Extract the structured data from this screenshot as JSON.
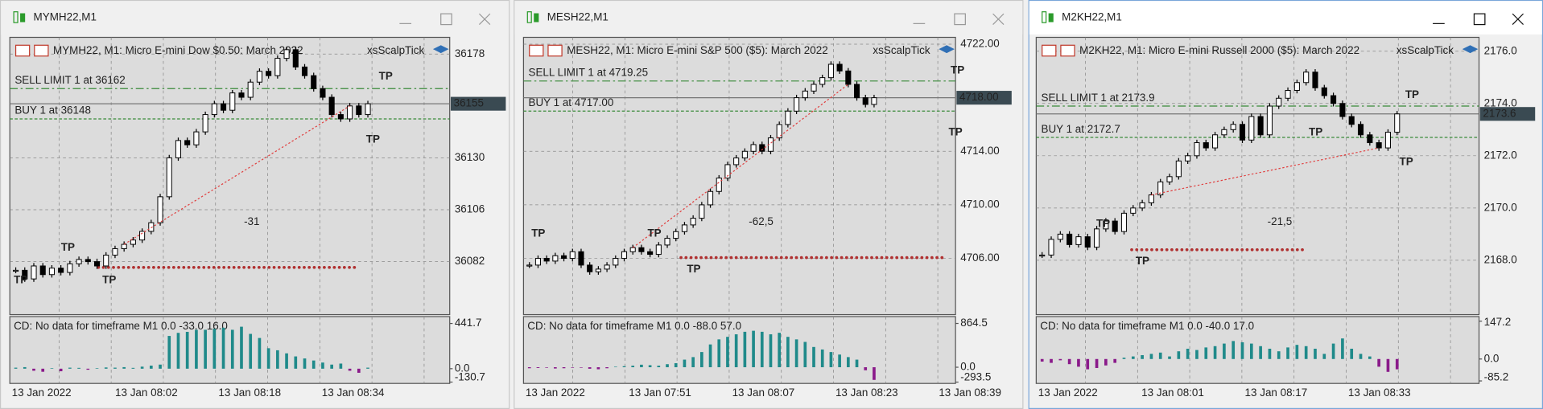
{
  "windows": [
    {
      "title": "MYMH22,M1",
      "header": "MYMH22, M1:  Micro E-mini Dow $0.50: March 2022",
      "expert": "xsScalpTick",
      "ylim": [
        36057.5,
        36185.7
      ],
      "yticks": [
        36082,
        36106,
        36130,
        36178
      ],
      "current_price": 36155,
      "sell_limit": {
        "label": "SELL LIMIT 1 at 36162",
        "price": 36162
      },
      "buy": {
        "label": "BUY 1 at 36148",
        "price": 36148
      },
      "profit_label": "-31",
      "tp_label": "TP",
      "times": [
        "13 Jan 2022",
        "13 Jan 08:02",
        "13 Jan 08:18",
        "13 Jan 08:34"
      ],
      "closes": [
        36078,
        36074,
        36080,
        36076,
        36079,
        36077,
        36081,
        36083,
        36082,
        36080,
        36085,
        36088,
        36090,
        36092,
        36096,
        36100,
        36112,
        36130,
        36138,
        36136,
        36142,
        36150,
        36155,
        36152,
        36160,
        36158,
        36165,
        36170,
        36168,
        36176,
        36180,
        36172,
        36168,
        36162,
        36158,
        36150,
        36148,
        36154,
        36150,
        36155
      ],
      "indicator": {
        "label": "CD: No data for timeframe M1 0.0 -33.0 16.0",
        "ylim": [
          -144,
          509
        ],
        "yticks": [
          441.7,
          {
            "value": 0,
            "label": "0.0"
          },
          -130.7
        ],
        "values": [
          10,
          15,
          -20,
          -30,
          5,
          -25,
          10,
          8,
          -10,
          5,
          12,
          10,
          15,
          8,
          20,
          30,
          40,
          320,
          350,
          360,
          380,
          380,
          390,
          400,
          380,
          410,
          340,
          300,
          200,
          180,
          150,
          120,
          100,
          80,
          60,
          40,
          50,
          -20,
          -40,
          10
        ]
      }
    },
    {
      "title": "MESH22,M1",
      "header": "MESH22, M1:  Micro E-mini S&P 500 ($5): March 2022",
      "expert": "xsScalpTick",
      "ylim": [
        4701.8,
        4722.51
      ],
      "yticks": [
        {
          "value": 4706,
          "label": "4706.00"
        },
        {
          "value": 4710,
          "label": "4710.00"
        },
        {
          "value": 4714,
          "label": "4714.00"
        },
        {
          "value": 4722,
          "label": "4722.00"
        }
      ],
      "current_price": {
        "value": 4718,
        "label": "4718.00"
      },
      "sell_limit": {
        "label": "SELL LIMIT 1 at 4719.25",
        "price": 4719.25
      },
      "buy": {
        "label": "BUY 1 at 4717.00",
        "price": 4717
      },
      "profit_label": "-62,5",
      "tp_label": "TP",
      "times": [
        "13 Jan 2022",
        "13 Jan 07:51",
        "13 Jan 08:07",
        "13 Jan 08:23",
        "13 Jan 08:39"
      ],
      "closes": [
        4705.5,
        4706,
        4705.8,
        4706.2,
        4706,
        4706.5,
        4705.5,
        4705,
        4705.2,
        4705.5,
        4706,
        4706.5,
        4706.8,
        4706.5,
        4706.3,
        4707,
        4707.5,
        4708,
        4708.5,
        4709,
        4710,
        4711,
        4712,
        4713,
        4713.5,
        4714,
        4714.5,
        4714,
        4715,
        4716,
        4717,
        4718,
        4718.5,
        4719,
        4719.5,
        4720.5,
        4720,
        4719,
        4718,
        4717.5,
        4718
      ],
      "indicator": {
        "label": "CD: No data for timeframe M1 0.0 -88.0 57.0",
        "ylim": [
          -320,
          1000
        ],
        "yticks": [
          864.5,
          {
            "value": 0,
            "label": "0.0"
          },
          -293.5
        ],
        "values": [
          -20,
          -15,
          -10,
          -25,
          -20,
          -10,
          -5,
          -30,
          -40,
          -20,
          10,
          20,
          30,
          50,
          40,
          30,
          60,
          80,
          150,
          200,
          300,
          450,
          550,
          600,
          650,
          700,
          720,
          700,
          650,
          680,
          600,
          550,
          500,
          400,
          350,
          300,
          250,
          200,
          150,
          -60,
          -250
        ]
      }
    },
    {
      "title": "M2KH22,M1",
      "header": "M2KH22, M1:  Micro E-mini Russell 2000 ($5): March 2022",
      "expert": "xsScalpTick",
      "ylim": [
        2165.92,
        2176.53
      ],
      "yticks": [
        {
          "value": 2168,
          "label": "2168.0"
        },
        {
          "value": 2170,
          "label": "2170.0"
        },
        {
          "value": 2172,
          "label": "2172.0"
        },
        {
          "value": 2174,
          "label": "2174.0"
        },
        {
          "value": 2176,
          "label": "2176.0"
        }
      ],
      "current_price": 2173.6,
      "sell_limit": {
        "label": "SELL LIMIT 1 at 2173.9",
        "price": 2173.9
      },
      "buy": {
        "label": "BUY 1 at 2172.7",
        "price": 2172.7
      },
      "profit_label": "-21,5",
      "tp_label": "TP",
      "times": [
        "13 Jan 2022",
        "13 Jan 08:01",
        "13 Jan 08:17",
        "13 Jan 08:33"
      ],
      "closes": [
        2168.2,
        2168.8,
        2169,
        2168.6,
        2168.9,
        2168.5,
        2169.2,
        2169.5,
        2169.1,
        2169.8,
        2170,
        2170.2,
        2170.5,
        2171,
        2171.2,
        2171.8,
        2172,
        2172.5,
        2172.3,
        2172.8,
        2173,
        2173.2,
        2172.6,
        2173.5,
        2172.8,
        2173.9,
        2174.2,
        2174.5,
        2174.8,
        2175.2,
        2174.6,
        2174.3,
        2174,
        2173.5,
        2173.2,
        2172.8,
        2172.5,
        2172.3,
        2172.9,
        2173.6
      ],
      "indicator": {
        "label": "CD: No data for timeframe M1 0.0 -40.0 17.0",
        "ylim": [
          -95,
          165
        ],
        "yticks": [
          147.2,
          {
            "value": 0,
            "label": "0.0"
          },
          -85.2
        ],
        "values": [
          -10,
          -15,
          -5,
          -20,
          -30,
          -40,
          -35,
          -25,
          -15,
          5,
          10,
          15,
          20,
          25,
          10,
          30,
          40,
          35,
          45,
          50,
          60,
          70,
          65,
          60,
          50,
          40,
          30,
          45,
          55,
          50,
          40,
          20,
          60,
          80,
          40,
          20,
          10,
          -30,
          -50,
          -40
        ]
      }
    }
  ]
}
